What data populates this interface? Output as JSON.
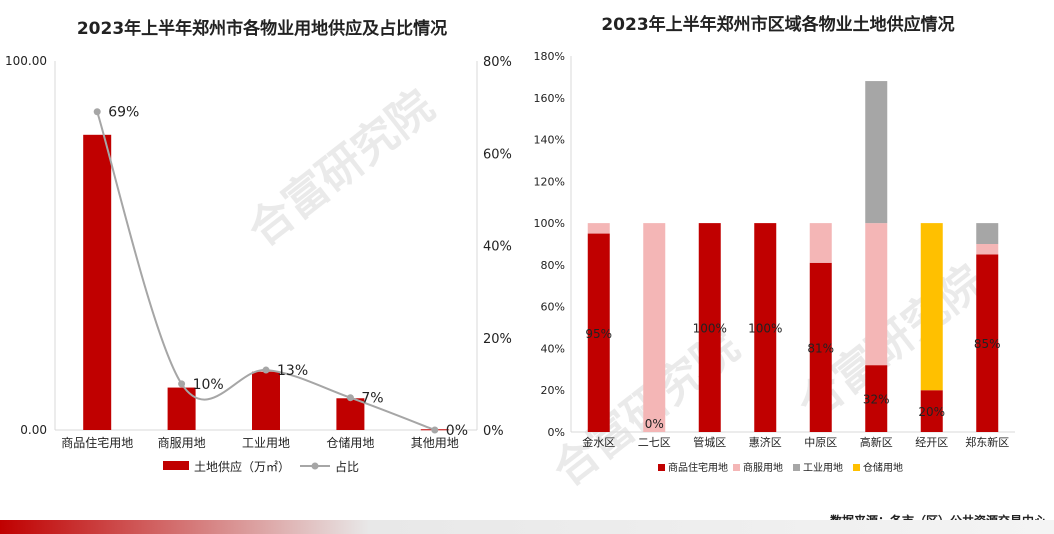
{
  "colors": {
    "residential": "#c00000",
    "commercial": "#f4b6b6",
    "industrial": "#a6a6a6",
    "storage": "#ffc000",
    "line": "#a6a6a6",
    "axis": "#d9d9d9",
    "text": "#222222",
    "watermark": "#d0d0d0"
  },
  "watermarks": [
    "合富研究院",
    "合富研究院",
    "合富研究院"
  ],
  "source_text": "数据来源：各市（区）公共资源交易中心",
  "chart_data": [
    {
      "id": "left",
      "type": "bar",
      "title": "2023年上半年郑州市各物业用地供应及占比情况",
      "categories": [
        "商品住宅用地",
        "商服用地",
        "工业用地",
        "仓储用地",
        "其他用地"
      ],
      "series": [
        {
          "name": "土地供应（万㎡）",
          "type": "bar",
          "axis": "left",
          "values": [
            80.0,
            11.5,
            15.8,
            8.6,
            0.2
          ]
        },
        {
          "name": "占比",
          "type": "line",
          "axis": "right",
          "values": [
            69,
            10,
            13,
            7,
            0
          ]
        }
      ],
      "data_labels": [
        "69%",
        "10%",
        "13%",
        "7%",
        "0%"
      ],
      "y_left": {
        "min": 0,
        "max": 100,
        "ticks": [
          "0.00",
          "100.00"
        ],
        "tick_values": [
          0,
          100
        ]
      },
      "y_right": {
        "min": 0,
        "max": 80,
        "ticks": [
          "0%",
          "20%",
          "40%",
          "60%",
          "80%"
        ],
        "tick_values": [
          0,
          20,
          40,
          60,
          80
        ]
      },
      "legend_position": "bottom",
      "grid": false
    },
    {
      "id": "right",
      "type": "bar",
      "stacked": true,
      "title": "2023年上半年郑州市区域各物业土地供应情况",
      "categories": [
        "金水区",
        "二七区",
        "管城区",
        "惠济区",
        "中原区",
        "高新区",
        "经开区",
        "郑东新区"
      ],
      "series": [
        {
          "name": "商品住宅用地",
          "values": [
            95,
            0,
            100,
            100,
            81,
            32,
            20,
            85
          ]
        },
        {
          "name": "商服用地",
          "values": [
            5,
            100,
            0,
            0,
            19,
            68,
            0,
            5
          ]
        },
        {
          "name": "工业用地",
          "values": [
            0,
            0,
            0,
            0,
            0,
            68,
            0,
            10
          ]
        },
        {
          "name": "仓储用地",
          "values": [
            0,
            0,
            0,
            0,
            0,
            0,
            80,
            0
          ]
        }
      ],
      "data_labels": [
        "95%",
        "0%",
        "100%",
        "100%",
        "81%",
        "32%",
        "20%",
        "85%"
      ],
      "y_axis": {
        "min": 0,
        "max": 180,
        "ticks": [
          "0%",
          "20%",
          "40%",
          "60%",
          "80%",
          "100%",
          "120%",
          "140%",
          "160%",
          "180%"
        ],
        "tick_values": [
          0,
          20,
          40,
          60,
          80,
          100,
          120,
          140,
          160,
          180
        ]
      },
      "legend_position": "bottom",
      "grid": false
    }
  ]
}
